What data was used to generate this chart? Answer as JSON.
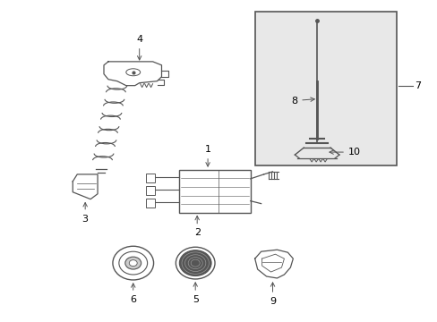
{
  "background_color": "#ffffff",
  "line_color": "#555555",
  "label_color": "#000000",
  "box_bg": "#e8e8e8",
  "figsize": [
    4.89,
    3.6
  ],
  "dpi": 100
}
